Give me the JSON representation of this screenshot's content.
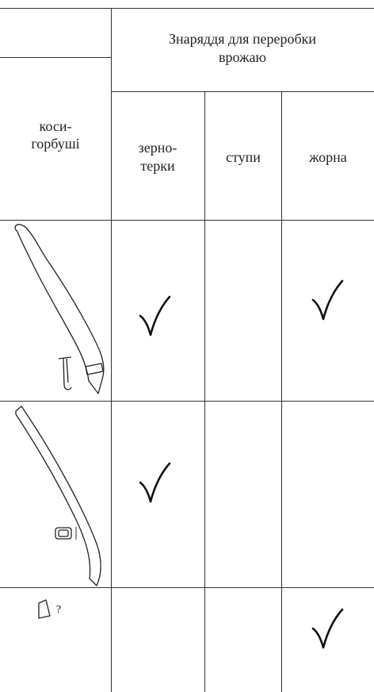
{
  "table": {
    "group_header": [
      "Знаряддя для переробки",
      "врожаю"
    ],
    "first_column_header": [
      "коси-",
      "горбуші"
    ],
    "columns": [
      [
        "зерно-",
        "терки"
      ],
      [
        "ступи"
      ],
      [
        "жорна"
      ]
    ],
    "query_mark": "?"
  }
}
